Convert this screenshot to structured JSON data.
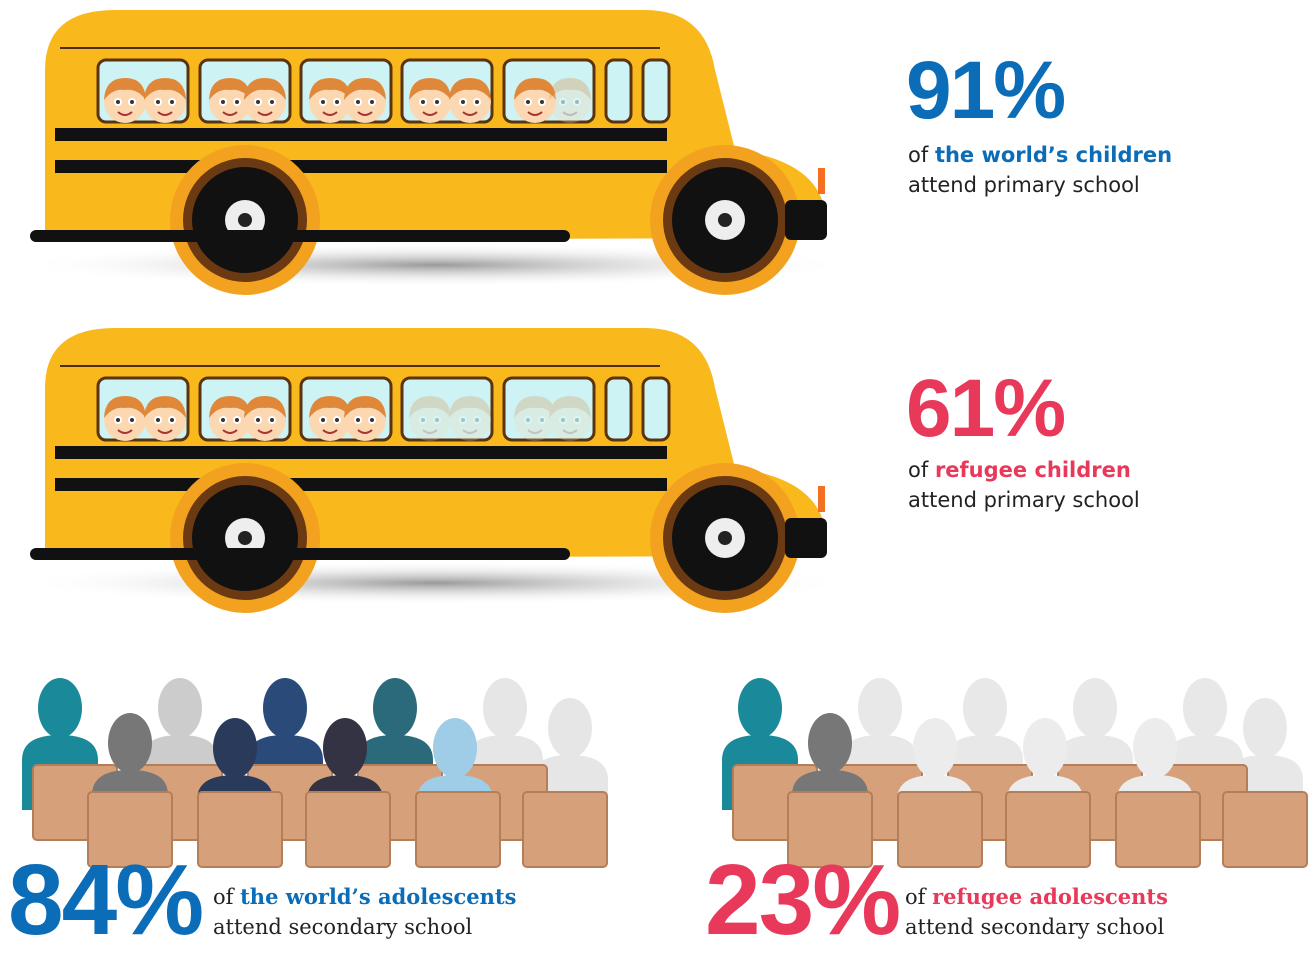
{
  "stats": [
    {
      "value": "91%",
      "prefix": "of",
      "highlight": "the world’s children",
      "rest": "attend primary school"
    },
    {
      "value": "61%",
      "prefix": "of",
      "highlight": "refugee children",
      "rest": "attend primary school"
    },
    {
      "value": "84%",
      "prefix": "of",
      "highlight": "the world’s adolescents",
      "rest": "attend secondary school"
    },
    {
      "value": "23%",
      "prefix": "of",
      "highlight": "refugee adolescents",
      "rest": "attend secondary school"
    }
  ]
}
